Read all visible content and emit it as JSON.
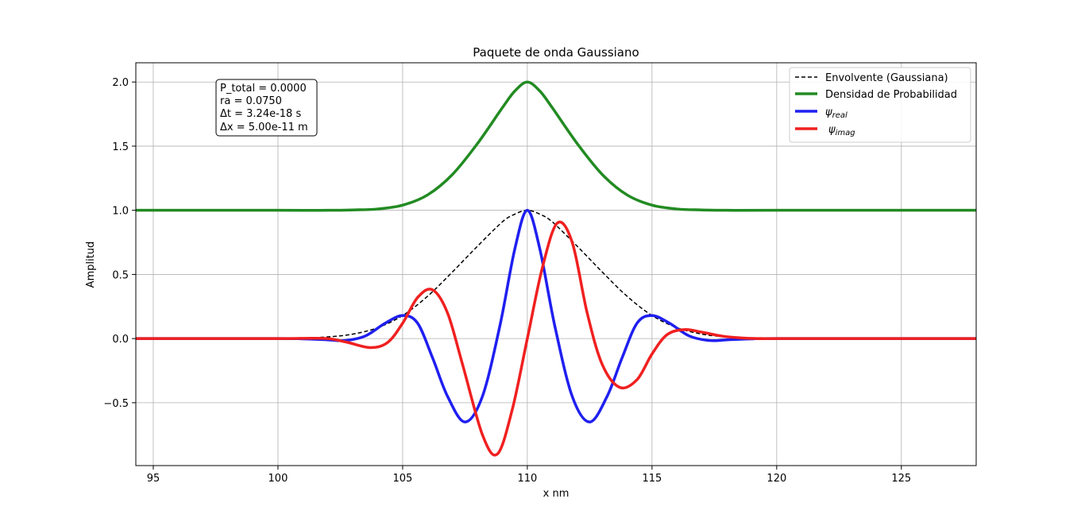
{
  "chart_data": {
    "type": "line",
    "title": "Paquete de onda Gaussiano",
    "xlabel": "x nm",
    "ylabel": "Amplitud",
    "xlim": [
      94.3,
      128.0
    ],
    "ylim": [
      -0.99,
      2.15
    ],
    "x_ticks": [
      95,
      100,
      105,
      110,
      115,
      120,
      125
    ],
    "y_ticks": [
      -0.5,
      0.0,
      0.5,
      1.0,
      1.5,
      2.0
    ],
    "x_tick_labels": [
      "95",
      "100",
      "105",
      "110",
      "115",
      "120",
      "125"
    ],
    "y_tick_labels": [
      "−0.5",
      "0.0",
      "0.5",
      "1.0",
      "1.5",
      "2.0"
    ],
    "grid": true,
    "legend_position": "top-right",
    "info_box": [
      "P_total = 0.0000",
      "ra = 0.0750",
      "Δt = 3.24e-18 s",
      "Δx = 5.00e-11 m"
    ],
    "series": [
      {
        "name": "Envolvente (Gaussiana)",
        "color": "#000000",
        "style": "dashed",
        "x": [
          94.3,
          100,
          101,
          102,
          103,
          104,
          105,
          106,
          107,
          108,
          109,
          109.5,
          110,
          110.5,
          111,
          112,
          113,
          114,
          115,
          116,
          117,
          118,
          119,
          120,
          128
        ],
        "y": [
          0.0,
          0.002,
          0.005,
          0.013,
          0.035,
          0.085,
          0.18,
          0.33,
          0.52,
          0.72,
          0.91,
          0.97,
          1.0,
          0.97,
          0.91,
          0.72,
          0.52,
          0.33,
          0.18,
          0.085,
          0.035,
          0.013,
          0.005,
          0.002,
          0.0
        ]
      },
      {
        "name": "Densidad de Probabilidad",
        "color": "#228B22",
        "style": "solid",
        "x": [
          94.3,
          100,
          102,
          103,
          104,
          105,
          106,
          107,
          108,
          109,
          109.5,
          110,
          110.5,
          111,
          112,
          113,
          114,
          115,
          116,
          117,
          118,
          120,
          128
        ],
        "y": [
          1.0,
          1.0,
          1.0,
          1.003,
          1.01,
          1.04,
          1.12,
          1.28,
          1.52,
          1.8,
          1.93,
          2.0,
          1.93,
          1.8,
          1.52,
          1.28,
          1.12,
          1.04,
          1.01,
          1.003,
          1.0,
          1.0,
          1.0
        ]
      },
      {
        "name": "ψreal",
        "color": "#1f1ff0",
        "style": "solid",
        "x": [
          94.3,
          100,
          101,
          102,
          102.7,
          103.5,
          104.3,
          105,
          105.6,
          106.2,
          106.8,
          107.5,
          108.2,
          108.9,
          109.5,
          110,
          110.5,
          111.1,
          111.8,
          112.5,
          113.2,
          113.8,
          114.4,
          115,
          115.7,
          116.5,
          117.3,
          118,
          119,
          120,
          128
        ],
        "y": [
          0.0,
          0.0,
          -0.002,
          -0.01,
          -0.015,
          0.02,
          0.12,
          0.18,
          0.12,
          -0.15,
          -0.45,
          -0.65,
          -0.45,
          0.1,
          0.7,
          1.0,
          0.7,
          0.1,
          -0.45,
          -0.65,
          -0.45,
          -0.15,
          0.12,
          0.18,
          0.12,
          0.02,
          -0.015,
          -0.01,
          -0.002,
          0.0,
          0.0
        ]
      },
      {
        "name": "ψimag",
        "color": "#f02020",
        "style": "solid",
        "x": [
          94.3,
          100,
          101,
          102,
          102.8,
          103.7,
          104.4,
          105,
          105.6,
          106.2,
          106.8,
          107.4,
          108.2,
          108.8,
          109.4,
          110,
          110.6,
          111.2,
          111.8,
          112.4,
          113,
          113.7,
          114.4,
          115,
          115.6,
          116.3,
          117,
          117.8,
          118.6,
          119.4,
          120,
          128
        ],
        "y": [
          0.0,
          0.0,
          0.002,
          0.0,
          -0.03,
          -0.07,
          -0.03,
          0.12,
          0.32,
          0.38,
          0.2,
          -0.2,
          -0.75,
          -0.9,
          -0.55,
          0.0,
          0.55,
          0.9,
          0.75,
          0.2,
          -0.2,
          -0.38,
          -0.32,
          -0.12,
          0.03,
          0.07,
          0.05,
          0.02,
          0.005,
          0.0,
          0.0,
          0.0
        ]
      }
    ]
  }
}
